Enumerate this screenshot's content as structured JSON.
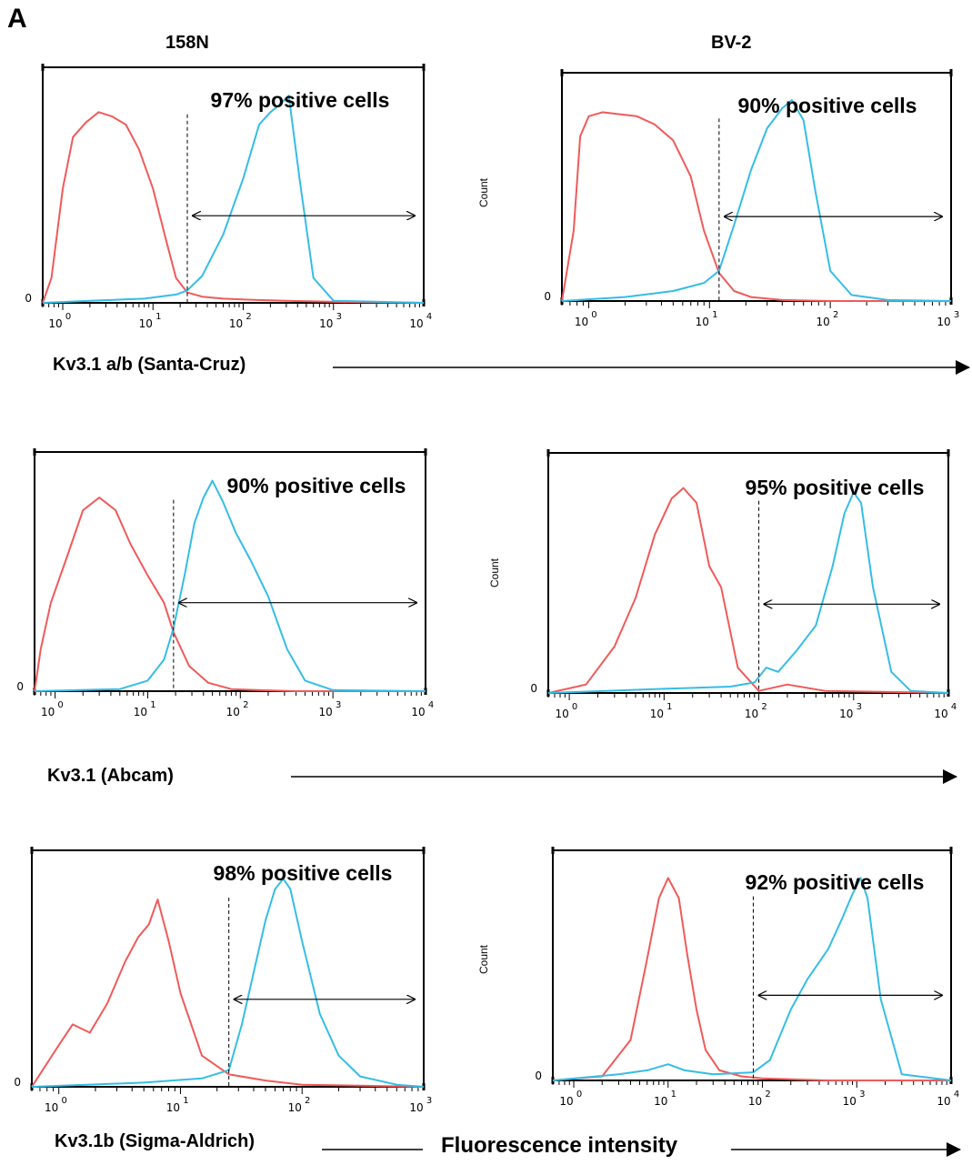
{
  "figure": {
    "panel_letter": "A",
    "columns": [
      "158N",
      "BV-2"
    ],
    "row_labels": [
      "Kv3.1 a/b (Santa-Cruz)",
      "Kv3.1 (Abcam)",
      "Kv3.1b (Sigma-Aldrich)"
    ],
    "xlabel": "Fluorescence intensity"
  },
  "chart_data": [
    {
      "type": "line",
      "row": 0,
      "col": 0,
      "cell_line": "158N",
      "antibody": "Kv3.1 a/b (Santa-Cruz)",
      "annotation": "97% positive cells",
      "gate_start": 24,
      "xlog": true,
      "xlim": [
        0.6,
        10000
      ],
      "xticks": [
        1,
        10,
        100,
        1000,
        10000
      ],
      "xtick_labels": [
        "0",
        "1",
        "2",
        "3",
        "4"
      ],
      "ylabel": "",
      "ytick_label": "0",
      "series": [
        {
          "color": "#f05a5a",
          "x": [
            0.6,
            0.75,
            1,
            1.3,
            1.8,
            2.5,
            3.5,
            5,
            7,
            10,
            14,
            18,
            24,
            35,
            60,
            120,
            300,
            1000,
            10000
          ],
          "y": [
            0,
            0.12,
            0.55,
            0.8,
            0.87,
            0.92,
            0.9,
            0.86,
            0.74,
            0.55,
            0.3,
            0.12,
            0.05,
            0.03,
            0.02,
            0.015,
            0.01,
            0.005,
            0
          ]
        },
        {
          "color": "#35bde6",
          "x": [
            0.6,
            2,
            8,
            18,
            24,
            35,
            60,
            100,
            150,
            200,
            260,
            320,
            420,
            600,
            1000,
            10000
          ],
          "y": [
            0,
            0.01,
            0.02,
            0.04,
            0.06,
            0.13,
            0.33,
            0.6,
            0.86,
            0.92,
            0.96,
            1.0,
            0.6,
            0.12,
            0.01,
            0
          ]
        }
      ]
    },
    {
      "type": "line",
      "row": 0,
      "col": 1,
      "cell_line": "BV-2",
      "antibody": "Kv3.1 a/b (Santa-Cruz)",
      "annotation": "90% positive cells",
      "gate_start": 12,
      "xlog": true,
      "xlim": [
        0.6,
        1000
      ],
      "xticks": [
        1,
        10,
        100,
        1000
      ],
      "xtick_labels": [
        "0",
        "1",
        "2",
        "3"
      ],
      "ylabel": "Count",
      "ytick_label": "0",
      "series": [
        {
          "color": "#f05a5a",
          "x": [
            0.6,
            0.75,
            0.85,
            1,
            1.3,
            1.8,
            2.5,
            3.5,
            5,
            7,
            9,
            12,
            16,
            22,
            40,
            100,
            1000
          ],
          "y": [
            0,
            0.35,
            0.82,
            0.92,
            0.94,
            0.93,
            0.92,
            0.88,
            0.8,
            0.62,
            0.35,
            0.14,
            0.05,
            0.02,
            0.005,
            0,
            0
          ]
        },
        {
          "color": "#35bde6",
          "x": [
            0.6,
            2,
            5,
            9,
            12,
            16,
            22,
            30,
            40,
            48,
            60,
            75,
            100,
            150,
            300,
            1000
          ],
          "y": [
            0,
            0.02,
            0.05,
            0.09,
            0.15,
            0.38,
            0.65,
            0.86,
            0.96,
            1.0,
            0.9,
            0.55,
            0.15,
            0.03,
            0.005,
            0
          ]
        }
      ]
    },
    {
      "type": "line",
      "row": 1,
      "col": 0,
      "cell_line": "158N",
      "antibody": "Kv3.1 (Abcam)",
      "annotation": "90% positive cells",
      "gate_start": 19,
      "xlog": true,
      "xlim": [
        0.6,
        10000
      ],
      "xticks": [
        1,
        10,
        100,
        1000,
        10000
      ],
      "xtick_labels": [
        "0",
        "1",
        "2",
        "3",
        "4"
      ],
      "ylabel": "",
      "ytick_label": "0",
      "series": [
        {
          "color": "#f05a5a",
          "x": [
            0.6,
            0.7,
            0.9,
            1.3,
            2,
            3,
            4.5,
            6.5,
            10,
            15,
            19,
            28,
            45,
            80,
            150,
            400,
            10000
          ],
          "y": [
            0,
            0.2,
            0.42,
            0.62,
            0.86,
            0.92,
            0.86,
            0.7,
            0.55,
            0.42,
            0.28,
            0.12,
            0.04,
            0.01,
            0.005,
            0,
            0
          ]
        },
        {
          "color": "#35bde6",
          "x": [
            0.6,
            5,
            10,
            15,
            19,
            25,
            32,
            40,
            50,
            65,
            90,
            130,
            200,
            320,
            500,
            1000,
            10000
          ],
          "y": [
            0,
            0.01,
            0.05,
            0.15,
            0.3,
            0.55,
            0.8,
            0.92,
            1.0,
            0.9,
            0.75,
            0.62,
            0.45,
            0.2,
            0.05,
            0.005,
            0
          ]
        }
      ]
    },
    {
      "type": "line",
      "row": 1,
      "col": 1,
      "cell_line": "BV-2",
      "antibody": "Kv3.1 (Abcam)",
      "annotation": "95% positive cells",
      "gate_start": 100,
      "xlog": true,
      "xlim": [
        0.6,
        10000
      ],
      "xticks": [
        1,
        10,
        100,
        1000,
        10000
      ],
      "xtick_labels": [
        "0",
        "1",
        "2",
        "3",
        "4"
      ],
      "ylabel": "Count",
      "ytick_label": "0",
      "series": [
        {
          "color": "#f05a5a",
          "x": [
            0.6,
            1.5,
            3,
            5,
            8,
            12,
            16,
            22,
            30,
            40,
            60,
            100,
            200,
            500,
            10000
          ],
          "y": [
            0,
            0.04,
            0.22,
            0.45,
            0.75,
            0.92,
            0.97,
            0.9,
            0.6,
            0.5,
            0.12,
            0.01,
            0.04,
            0.01,
            0
          ]
        },
        {
          "color": "#35bde6",
          "x": [
            0.6,
            10,
            50,
            90,
            120,
            160,
            250,
            400,
            600,
            800,
            1000,
            1200,
            1600,
            2500,
            4000,
            10000
          ],
          "y": [
            0,
            0.02,
            0.03,
            0.05,
            0.12,
            0.1,
            0.2,
            0.32,
            0.6,
            0.85,
            0.95,
            0.9,
            0.5,
            0.1,
            0.01,
            0
          ]
        }
      ]
    },
    {
      "type": "line",
      "row": 2,
      "col": 0,
      "cell_line": "158N",
      "antibody": "Kv3.1b (Sigma-Aldrich)",
      "annotation": "98% positive cells",
      "gate_start": 25,
      "xlog": true,
      "xlim": [
        0.6,
        1000
      ],
      "xticks": [
        1,
        10,
        100,
        1000
      ],
      "xtick_labels": [
        "0",
        "1",
        "2",
        "3"
      ],
      "ylabel": "",
      "ytick_label": "0",
      "series": [
        {
          "color": "#f05a5a",
          "x": [
            0.6,
            1,
            1.3,
            1.8,
            2.5,
            3.5,
            4.5,
            5.5,
            6.5,
            8,
            10,
            15,
            25,
            50,
            100,
            1000
          ],
          "y": [
            0,
            0.2,
            0.3,
            0.26,
            0.4,
            0.6,
            0.72,
            0.78,
            0.9,
            0.7,
            0.45,
            0.15,
            0.06,
            0.03,
            0.01,
            0
          ]
        },
        {
          "color": "#35bde6",
          "x": [
            0.6,
            5,
            15,
            25,
            32,
            40,
            50,
            60,
            70,
            80,
            100,
            140,
            200,
            300,
            600,
            1000
          ],
          "y": [
            0,
            0.02,
            0.04,
            0.08,
            0.3,
            0.55,
            0.8,
            0.95,
            1.0,
            0.95,
            0.7,
            0.35,
            0.15,
            0.05,
            0.01,
            0
          ]
        }
      ]
    },
    {
      "type": "line",
      "row": 2,
      "col": 1,
      "cell_line": "BV-2",
      "antibody": "Kv3.1b (Sigma-Aldrich)",
      "annotation": "92% positive cells",
      "gate_start": 80,
      "xlog": true,
      "xlim": [
        0.6,
        10000
      ],
      "xticks": [
        1,
        10,
        100,
        1000,
        10000
      ],
      "xtick_labels": [
        "0",
        "1",
        "2",
        "3",
        "4"
      ],
      "ylabel": "Count",
      "ytick_label": "0",
      "series": [
        {
          "color": "#f05a5a",
          "x": [
            0.6,
            2,
            4,
            6,
            8,
            10,
            13,
            16,
            20,
            25,
            35,
            60,
            100,
            500,
            10000
          ],
          "y": [
            0,
            0.02,
            0.2,
            0.6,
            0.9,
            1.0,
            0.9,
            0.62,
            0.35,
            0.15,
            0.05,
            0.02,
            0.01,
            0,
            0
          ]
        },
        {
          "color": "#35bde6",
          "x": [
            0.6,
            3,
            6,
            10,
            15,
            30,
            80,
            120,
            200,
            300,
            500,
            700,
            900,
            1100,
            1300,
            1800,
            3000,
            10000
          ],
          "y": [
            0,
            0.03,
            0.05,
            0.08,
            0.05,
            0.03,
            0.04,
            0.1,
            0.35,
            0.5,
            0.65,
            0.8,
            0.92,
            1.0,
            0.9,
            0.4,
            0.03,
            0
          ]
        }
      ]
    }
  ]
}
